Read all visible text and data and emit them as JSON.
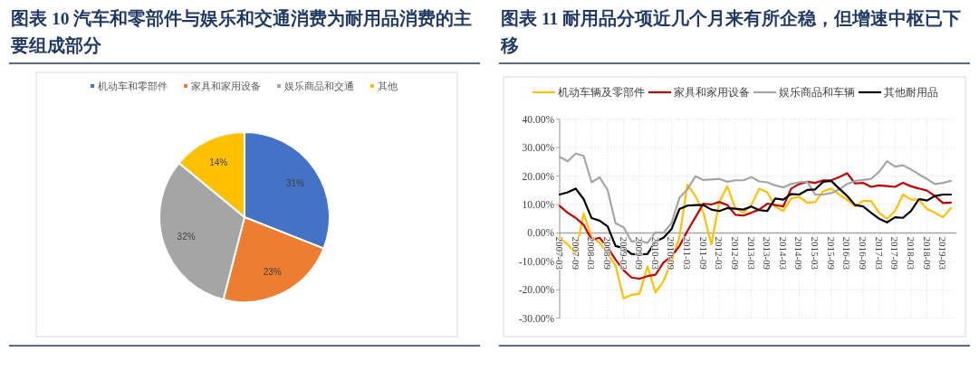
{
  "chart_data": [
    {
      "type": "pie",
      "title": "图表 10   汽车和零部件与娱乐和交通消费为耐用品消费的主要组成部分",
      "legend": "top",
      "categories": [
        "机动车和零部件",
        "家具和家用设备",
        "娱乐商品和交通",
        "其他"
      ],
      "values": [
        31,
        23,
        32,
        14
      ],
      "colors": [
        "#4472c4",
        "#ed7d31",
        "#a5a5a5",
        "#ffc000"
      ],
      "value_labels": [
        "31%",
        "23%",
        "32%",
        "14%"
      ]
    },
    {
      "type": "line",
      "title": "图表 11   耐用品分项近几个月来有所企稳，但增速中枢已下移",
      "legend": "top",
      "grid": true,
      "marker": "none",
      "line_style": "solid",
      "categories": [
        "2007-03",
        null,
        "2007-09",
        null,
        "2008-03",
        null,
        "2008-09",
        null,
        "2009-03",
        null,
        "2009-09",
        null,
        "2010-03",
        null,
        "2010-09",
        null,
        "2011-03",
        null,
        "2011-09",
        null,
        "2012-03",
        null,
        "2012-09",
        null,
        "2013-03",
        null,
        "2013-09",
        null,
        "2014-03",
        null,
        "2014-09",
        null,
        "2015-03",
        null,
        "2015-09",
        null,
        "2016-03",
        null,
        "2016-09",
        null,
        "2017-03",
        null,
        "2017-09",
        null,
        "2018-03",
        null,
        "2018-09",
        null,
        "2019-03",
        null
      ],
      "ylim": [
        -30,
        40
      ],
      "yticks": [
        {
          "value": -30,
          "label": "-30.00%"
        },
        {
          "value": -20,
          "label": "-20.00%"
        },
        {
          "value": -10,
          "label": "-10.00%"
        },
        {
          "value": 0,
          "label": "0.00%"
        },
        {
          "value": 10,
          "label": "10.00%"
        },
        {
          "value": 20,
          "label": "20.00%"
        },
        {
          "value": 30,
          "label": "30.00%"
        },
        {
          "value": 40,
          "label": "40.00%"
        }
      ],
      "series": [
        {
          "name": "机动车辆及零部件",
          "color": "#ffc000",
          "values": [
            -1.7,
            -4.0,
            -7.2,
            6.9,
            -1.4,
            -3.5,
            -7.2,
            -11.5,
            -23.0,
            -21.8,
            -21.4,
            -11.7,
            -20.9,
            -17.0,
            -9.9,
            -1.4,
            17.0,
            13.0,
            7.1,
            -4.0,
            10.9,
            16.4,
            8.7,
            7.1,
            9.8,
            15.6,
            14.3,
            9.3,
            7.7,
            12.1,
            12.7,
            10.6,
            10.9,
            14.6,
            15.6,
            13.5,
            11.7,
            9.3,
            11.2,
            11.2,
            7.1,
            5.0,
            7.7,
            13.5,
            11.7,
            11.7,
            8.4,
            7.1,
            5.5,
            8.7
          ]
        },
        {
          "name": "家具和家用设备",
          "color": "#c00000",
          "values": [
            9.5,
            7.1,
            5.3,
            2.9,
            -2.4,
            -1.7,
            -5.1,
            -9.4,
            -13.1,
            -15.7,
            -16.1,
            -15.2,
            -14.7,
            -10.4,
            -8.3,
            -4.6,
            0.7,
            5.5,
            10.3,
            10.0,
            10.9,
            9.8,
            6.4,
            6.1,
            7.1,
            8.2,
            10.3,
            9.8,
            9.3,
            15.6,
            17.2,
            18.0,
            17.6,
            18.5,
            18.5,
            19.6,
            21.0,
            17.4,
            17.6,
            16.2,
            16.7,
            16.5,
            16.2,
            17.6,
            16.4,
            15.6,
            14.9,
            13.0,
            10.5,
            10.7
          ]
        },
        {
          "name": "娱乐商品和车辆",
          "color": "#a5a5a5",
          "values": [
            26.8,
            25.2,
            27.9,
            27.1,
            17.8,
            19.6,
            15.1,
            3.4,
            2.0,
            -3.0,
            -2.8,
            -3.5,
            0.2,
            0.0,
            3.4,
            12.4,
            15.3,
            19.9,
            18.6,
            18.8,
            19.0,
            18.0,
            18.5,
            18.5,
            19.6,
            18.1,
            17.8,
            16.7,
            16.0,
            17.2,
            17.8,
            18.0,
            13.5,
            13.5,
            14.0,
            15.3,
            17.2,
            18.3,
            18.6,
            19.0,
            21.5,
            25.2,
            23.3,
            23.8,
            22.3,
            20.6,
            19.0,
            17.2,
            17.6,
            18.3
          ]
        },
        {
          "name": "其他耐用品",
          "color": "#000000",
          "values": [
            13.5,
            14.3,
            15.6,
            11.9,
            5.2,
            4.3,
            2.3,
            -4.6,
            -5.3,
            -7.4,
            -7.6,
            -7.4,
            -3.0,
            -1.7,
            1.3,
            8.4,
            9.6,
            9.8,
            9.8,
            8.2,
            7.7,
            8.7,
            8.5,
            8.2,
            9.3,
            8.0,
            7.7,
            12.1,
            11.7,
            13.7,
            13.5,
            15.1,
            15.3,
            18.0,
            18.3,
            15.6,
            13.0,
            9.8,
            9.3,
            7.1,
            5.0,
            3.7,
            5.5,
            5.3,
            7.7,
            11.9,
            11.4,
            13.0,
            13.5,
            13.5
          ]
        }
      ]
    }
  ]
}
